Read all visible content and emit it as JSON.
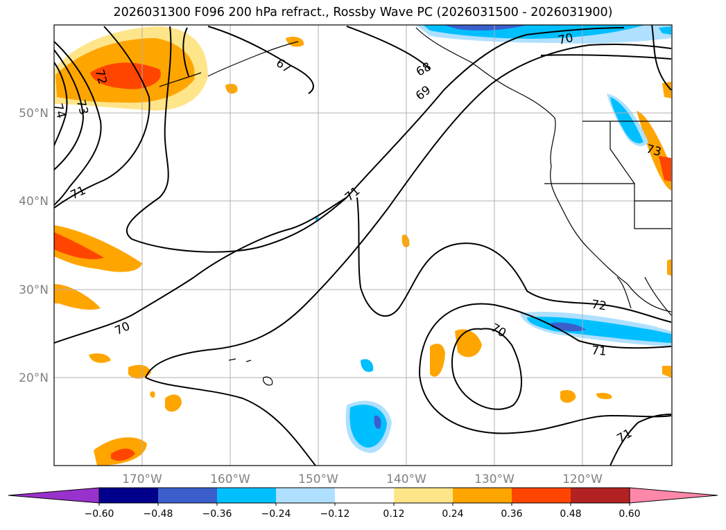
{
  "title": "2026031300 F096 200 hPa refract., Rossby Wave PC (2026031500 - 2026031900)",
  "map": {
    "lat_labels": [
      "50°N",
      "40°N",
      "30°N",
      "20°N"
    ],
    "lon_labels": [
      "170°W",
      "160°W",
      "150°W",
      "140°W",
      "130°W",
      "120°W"
    ],
    "contour_labels": [
      "72",
      "73",
      "74",
      "67",
      "68",
      "69",
      "70",
      "71",
      "71",
      "70",
      "72",
      "71",
      "70",
      "71",
      "73"
    ]
  },
  "colorbar": {
    "ticks": [
      "−0.60",
      "−0.48",
      "−0.36",
      "−0.24",
      "−0.12",
      "0.12",
      "0.24",
      "0.36",
      "0.48",
      "0.60"
    ],
    "colors": [
      "#9932cc",
      "#00008b",
      "#3a5fcd",
      "#00bfff",
      "#b0e0ff",
      "#ffffff",
      "#ffe58a",
      "#ffa500",
      "#ff4500",
      "#b22222",
      "#ff88aa"
    ]
  }
}
